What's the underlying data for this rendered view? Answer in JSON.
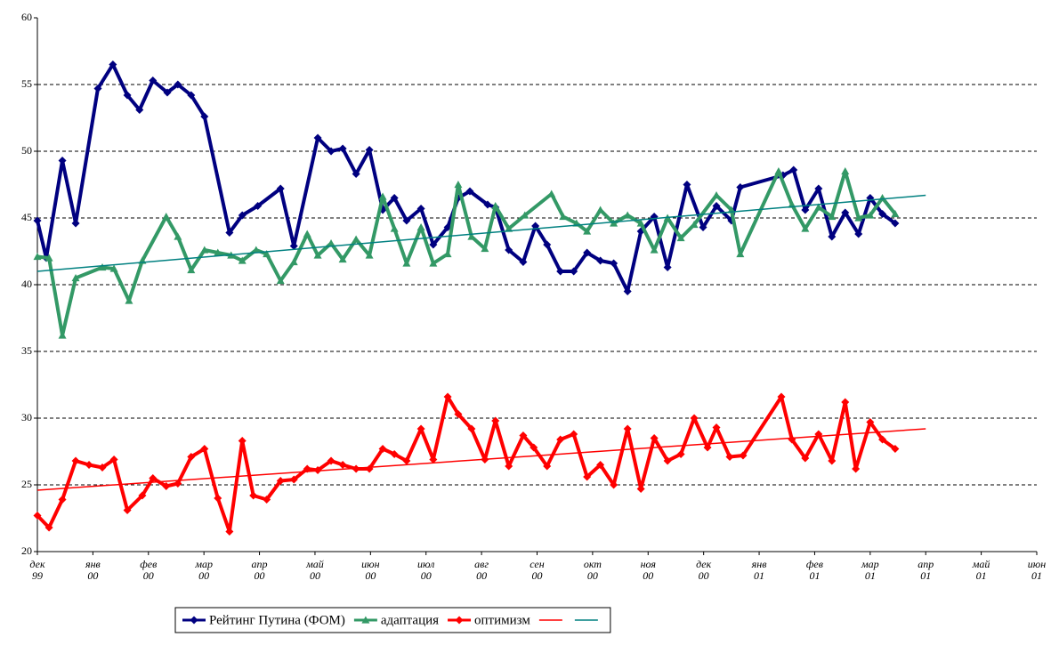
{
  "chart_data": {
    "type": "line",
    "xlim": [
      0,
      18
    ],
    "xticks": [
      {
        "value": 0,
        "label": "дек 99"
      },
      {
        "value": 1,
        "label": "янв 00"
      },
      {
        "value": 2,
        "label": "фев 00"
      },
      {
        "value": 3,
        "label": "мар 00"
      },
      {
        "value": 4,
        "label": "апр 00"
      },
      {
        "value": 5,
        "label": "май 00"
      },
      {
        "value": 6,
        "label": "июн 00"
      },
      {
        "value": 7,
        "label": "июл 00"
      },
      {
        "value": 8,
        "label": "авг 00"
      },
      {
        "value": 9,
        "label": "сен 00"
      },
      {
        "value": 10,
        "label": "окт 00"
      },
      {
        "value": 11,
        "label": "ноя 00"
      },
      {
        "value": 12,
        "label": "дек 00"
      },
      {
        "value": 13,
        "label": "янв 01"
      },
      {
        "value": 14,
        "label": "фев 01"
      },
      {
        "value": 15,
        "label": "мар 01"
      },
      {
        "value": 16,
        "label": "апр 01"
      },
      {
        "value": 17,
        "label": "май 01"
      },
      {
        "value": 18,
        "label": "июн 01"
      }
    ],
    "ylim": [
      20,
      60
    ],
    "yticks": [
      20,
      25,
      30,
      35,
      40,
      45,
      50,
      55,
      60
    ],
    "grid": true,
    "series": [
      {
        "name": "Рейтинг Путина (ФОМ)",
        "color": "#000080",
        "marker": "diamond",
        "x": [
          0,
          0.16,
          0.45,
          0.69,
          1.09,
          1.36,
          1.62,
          1.84,
          2.08,
          2.34,
          2.53,
          2.77,
          3.01,
          3.46,
          3.69,
          3.97,
          4.38,
          4.62,
          5.05,
          5.29,
          5.5,
          5.74,
          5.98,
          6.22,
          6.43,
          6.65,
          6.91,
          7.13,
          7.39,
          7.58,
          7.79,
          8.11,
          8.25,
          8.49,
          8.75,
          8.97,
          9.18,
          9.42,
          9.66,
          9.9,
          10.14,
          10.38,
          10.63,
          10.87,
          11.11,
          11.35,
          11.7,
          11.99,
          12.23,
          12.5,
          12.66,
          13.43,
          13.62,
          13.83,
          14.07,
          14.31,
          14.55,
          14.79,
          15,
          15.22,
          15.45
        ],
        "values": [
          44.8,
          42,
          49.3,
          44.6,
          54.7,
          56.5,
          54.2,
          53.1,
          55.3,
          54.4,
          55,
          54.2,
          52.6,
          43.9,
          45.2,
          45.9,
          47.2,
          42.9,
          51,
          50,
          50.2,
          48.3,
          50.1,
          45.6,
          46.5,
          44.8,
          45.7,
          43,
          44.3,
          46.5,
          47,
          46,
          45.8,
          42.6,
          41.7,
          44.4,
          43,
          41,
          41,
          42.4,
          41.8,
          41.6,
          39.5,
          44,
          45.1,
          41.3,
          47.5,
          44.3,
          45.9,
          44.8,
          47.3,
          48.2,
          48.6,
          45.6,
          47.2,
          43.6,
          45.4,
          43.8,
          46.5,
          45.3,
          44.6
        ]
      },
      {
        "name": "адаптация",
        "color": "#339966",
        "marker": "triangle",
        "x": [
          0,
          0.21,
          0.45,
          0.69,
          1.17,
          1.38,
          1.65,
          1.89,
          2.32,
          2.53,
          2.77,
          3.01,
          3.25,
          3.49,
          3.69,
          3.94,
          4.13,
          4.38,
          4.62,
          4.86,
          5.05,
          5.29,
          5.5,
          5.74,
          5.98,
          6.22,
          6.43,
          6.65,
          6.91,
          7.13,
          7.39,
          7.58,
          7.82,
          8.06,
          8.25,
          8.49,
          8.78,
          9.26,
          9.47,
          9.71,
          9.9,
          10.14,
          10.38,
          10.63,
          10.87,
          11.11,
          11.35,
          11.59,
          11.83,
          12.23,
          12.5,
          12.66,
          13.35,
          13.59,
          13.83,
          14.07,
          14.31,
          14.55,
          14.79,
          15,
          15.22,
          15.45
        ],
        "values": [
          42.1,
          42,
          36.2,
          40.5,
          41.3,
          41.2,
          38.8,
          41.8,
          45.1,
          43.6,
          41.1,
          42.6,
          42.4,
          42.2,
          41.8,
          42.6,
          42.3,
          40.3,
          41.7,
          43.8,
          42.2,
          43.1,
          41.9,
          43.4,
          42.2,
          46.6,
          44.2,
          41.6,
          44.3,
          41.6,
          42.3,
          47.5,
          43.6,
          42.7,
          45.9,
          44.2,
          45.2,
          46.8,
          45.1,
          44.6,
          44,
          45.6,
          44.6,
          45.2,
          44.6,
          42.6,
          45,
          43.5,
          44.5,
          46.7,
          45.6,
          42.3,
          48.5,
          46,
          44.2,
          45.8,
          45.1,
          48.5,
          45,
          45.2,
          46.5,
          45.3
        ]
      },
      {
        "name": "оптимизм",
        "color": "#ff0000",
        "marker": "diamond",
        "x": [
          0,
          0.21,
          0.45,
          0.69,
          0.93,
          1.17,
          1.38,
          1.62,
          1.89,
          2.08,
          2.32,
          2.53,
          2.77,
          3.01,
          3.25,
          3.46,
          3.69,
          3.89,
          4.13,
          4.38,
          4.62,
          4.86,
          5.05,
          5.29,
          5.5,
          5.74,
          5.98,
          6.22,
          6.43,
          6.65,
          6.91,
          7.13,
          7.39,
          7.58,
          7.82,
          8.06,
          8.25,
          8.49,
          8.75,
          8.94,
          9.18,
          9.42,
          9.66,
          9.9,
          10.14,
          10.38,
          10.63,
          10.87,
          11.11,
          11.35,
          11.59,
          11.83,
          12.07,
          12.23,
          12.47,
          12.71,
          13.4,
          13.59,
          13.83,
          14.07,
          14.31,
          14.55,
          14.74,
          15,
          15.22,
          15.45
        ],
        "values": [
          22.7,
          21.8,
          23.9,
          26.8,
          26.5,
          26.3,
          26.9,
          23.1,
          24.2,
          25.5,
          24.9,
          25.1,
          27.1,
          27.7,
          24,
          21.5,
          28.3,
          24.2,
          23.9,
          25.3,
          25.4,
          26.2,
          26.1,
          26.8,
          26.5,
          26.2,
          26.2,
          27.7,
          27.3,
          26.8,
          29.2,
          26.9,
          31.6,
          30.3,
          29.2,
          26.9,
          29.8,
          26.4,
          28.7,
          27.8,
          26.4,
          28.4,
          28.8,
          25.6,
          26.5,
          25,
          29.2,
          24.7,
          28.5,
          26.8,
          27.3,
          30,
          27.8,
          29.3,
          27.1,
          27.2,
          31.6,
          28.4,
          27,
          28.8,
          26.8,
          31.2,
          26.2,
          29.7,
          28.4,
          27.7
        ]
      },
      {
        "color": "#ff0000",
        "x": [
          0,
          16
        ],
        "values": [
          24.6,
          29.2
        ]
      },
      {
        "color": "#008080",
        "x": [
          0,
          16
        ],
        "values": [
          41,
          46.7
        ]
      }
    ]
  }
}
